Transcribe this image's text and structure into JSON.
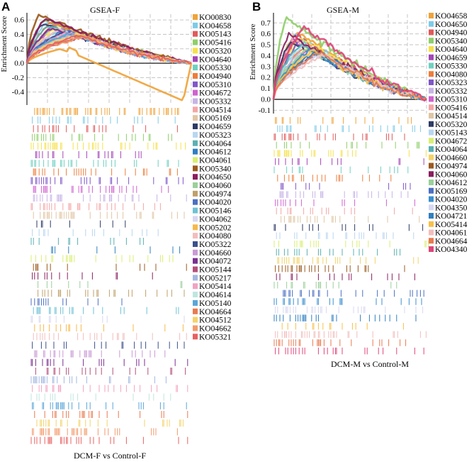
{
  "panels": [
    {
      "letter": "A",
      "footer": "DCM-F vs Control-F",
      "chart_data": {
        "type": "line",
        "title": "GSEA-F",
        "ylabel": "Enrichment Score",
        "xlabel": "",
        "ylim": [
          -0.58,
          0.68
        ],
        "yticks": [
          "0.6",
          "0.4",
          "0.2",
          "0.0",
          "-0.2",
          "-0.4"
        ],
        "grid": true,
        "legend_position": "right",
        "series": [
          {
            "name": "KO00830",
            "color": "#f0a33a",
            "peak": -0.52,
            "peak_at": 0.95
          },
          {
            "name": "KO04658",
            "color": "#7ecbe8",
            "peak": 0.58,
            "peak_at": 0.12
          },
          {
            "name": "KO05143",
            "color": "#e05a5a",
            "peak": 0.55,
            "peak_at": 0.18
          },
          {
            "name": "KO05416",
            "color": "#8fcf6a",
            "peak": 0.6,
            "peak_at": 0.1
          },
          {
            "name": "KO05320",
            "color": "#f6e04a",
            "peak": 0.52,
            "peak_at": 0.2
          },
          {
            "name": "KO04640",
            "color": "#a446b6",
            "peak": 0.5,
            "peak_at": 0.15
          },
          {
            "name": "KO05330",
            "color": "#6fd0c0",
            "peak": 0.48,
            "peak_at": 0.22
          },
          {
            "name": "KO04940",
            "color": "#ee7d3a",
            "peak": 0.56,
            "peak_at": 0.14
          },
          {
            "name": "KO05310",
            "color": "#7f56c8",
            "peak": 0.45,
            "peak_at": 0.25
          },
          {
            "name": "KO04672",
            "color": "#cf63cf",
            "peak": 0.5,
            "peak_at": 0.17
          },
          {
            "name": "KO05332",
            "color": "#c7b3e6",
            "peak": 0.47,
            "peak_at": 0.2
          },
          {
            "name": "KO04514",
            "color": "#f4a6a6",
            "peak": 0.44,
            "peak_at": 0.24
          },
          {
            "name": "KO05169",
            "color": "#e0c6a4",
            "peak": 0.42,
            "peak_at": 0.28
          },
          {
            "name": "KO04659",
            "color": "#2c3a66",
            "peak": 0.55,
            "peak_at": 0.09
          },
          {
            "name": "KO05323",
            "color": "#b8d6f0",
            "peak": 0.46,
            "peak_at": 0.2
          },
          {
            "name": "KO04064",
            "color": "#5ab0b2",
            "peak": 0.52,
            "peak_at": 0.13
          },
          {
            "name": "KO04612",
            "color": "#2f7fc0",
            "peak": 0.43,
            "peak_at": 0.26
          },
          {
            "name": "KO04061",
            "color": "#d8ef72",
            "peak": 0.41,
            "peak_at": 0.3
          },
          {
            "name": "KO05340",
            "color": "#9b5a1e",
            "peak": 0.67,
            "peak_at": 0.07
          },
          {
            "name": "KO04650",
            "color": "#8a1e5e",
            "peak": 0.62,
            "peak_at": 0.11
          },
          {
            "name": "KO04060",
            "color": "#9ad09a",
            "peak": 0.5,
            "peak_at": 0.16
          },
          {
            "name": "KO04974",
            "color": "#bfa06a",
            "peak": 0.39,
            "peak_at": 0.32
          },
          {
            "name": "KO04020",
            "color": "#4b6fc2",
            "peak": 0.45,
            "peak_at": 0.22
          },
          {
            "name": "KO05146",
            "color": "#6fc1d4",
            "peak": 0.42,
            "peak_at": 0.27
          },
          {
            "name": "KO04062",
            "color": "#d7d7f2",
            "peak": 0.38,
            "peak_at": 0.33
          },
          {
            "name": "KO05202",
            "color": "#f7b84a",
            "peak": 0.4,
            "peak_at": 0.3
          },
          {
            "name": "KO04080",
            "color": "#f3bdbd",
            "peak": 0.47,
            "peak_at": 0.19
          },
          {
            "name": "KO05322",
            "color": "#3b4f8a",
            "peak": 0.44,
            "peak_at": 0.23
          },
          {
            "name": "KO04660",
            "color": "#c99ad6",
            "peak": 0.41,
            "peak_at": 0.28
          },
          {
            "name": "KO04072",
            "color": "#7b2f8f",
            "peak": 0.49,
            "peak_at": 0.15
          },
          {
            "name": "KO05144",
            "color": "#b44f7a",
            "peak": 0.37,
            "peak_at": 0.35
          },
          {
            "name": "KO05217",
            "color": "#a3b8e0",
            "peak": 0.4,
            "peak_at": 0.29
          },
          {
            "name": "KO05414",
            "color": "#f2a2c2",
            "peak": 0.43,
            "peak_at": 0.25
          },
          {
            "name": "KO04614",
            "color": "#bfe6df",
            "peak": 0.39,
            "peak_at": 0.31
          },
          {
            "name": "KO05140",
            "color": "#5aa6d8",
            "peak": 0.42,
            "peak_at": 0.26
          },
          {
            "name": "KO04664",
            "color": "#e87a50",
            "peak": 0.38,
            "peak_at": 0.34
          },
          {
            "name": "KO04512",
            "color": "#f3d36a",
            "peak": 0.4,
            "peak_at": 0.3
          },
          {
            "name": "KO04662",
            "color": "#f39a6a",
            "peak": 0.37,
            "peak_at": 0.36
          },
          {
            "name": "KO05321",
            "color": "#e86060",
            "peak": 0.39,
            "peak_at": 0.32
          }
        ]
      }
    },
    {
      "letter": "B",
      "footer": "DCM-M vs Control-M",
      "chart_data": {
        "type": "line",
        "title": "GSEA-M",
        "ylabel": "Enrichment Score",
        "xlabel": "",
        "ylim": [
          -0.13,
          0.78
        ],
        "yticks": [
          "0.7",
          "0.6",
          "0.5",
          "0.4",
          "0.3",
          "0.2",
          "0.1",
          "0.0",
          "-0.1"
        ],
        "grid": true,
        "legend_position": "right",
        "series": [
          {
            "name": "KO04658",
            "color": "#f0a33a",
            "peak": 0.62,
            "peak_at": 0.15
          },
          {
            "name": "KO04650",
            "color": "#7ecbe8",
            "peak": 0.6,
            "peak_at": 0.14
          },
          {
            "name": "KO04940",
            "color": "#e05a5a",
            "peak": 0.58,
            "peak_at": 0.16
          },
          {
            "name": "KO05340",
            "color": "#8fcf6a",
            "peak": 0.75,
            "peak_at": 0.08
          },
          {
            "name": "KO04640",
            "color": "#f6e04a",
            "peak": 0.57,
            "peak_at": 0.18
          },
          {
            "name": "KO04659",
            "color": "#a446b6",
            "peak": 0.55,
            "peak_at": 0.12
          },
          {
            "name": "KO05330",
            "color": "#6fd0c0",
            "peak": 0.52,
            "peak_at": 0.2
          },
          {
            "name": "KO04080",
            "color": "#ee7d3a",
            "peak": 0.5,
            "peak_at": 0.22
          },
          {
            "name": "KO05323",
            "color": "#7f56c8",
            "peak": 0.53,
            "peak_at": 0.17
          },
          {
            "name": "KO05332",
            "color": "#c7b3e6",
            "peak": 0.49,
            "peak_at": 0.23
          },
          {
            "name": "KO05310",
            "color": "#cf63cf",
            "peak": 0.47,
            "peak_at": 0.25
          },
          {
            "name": "KO05416",
            "color": "#f4a6a6",
            "peak": 0.56,
            "peak_at": 0.13
          },
          {
            "name": "KO04514",
            "color": "#e0c6a4",
            "peak": 0.46,
            "peak_at": 0.26
          },
          {
            "name": "KO05320",
            "color": "#2c3a66",
            "peak": 0.54,
            "peak_at": 0.11
          },
          {
            "name": "KO05143",
            "color": "#b8d6f0",
            "peak": 0.5,
            "peak_at": 0.19
          },
          {
            "name": "KO04672",
            "color": "#d8ef72",
            "peak": 0.48,
            "peak_at": 0.24
          },
          {
            "name": "KO04064",
            "color": "#5ab0b2",
            "peak": 0.51,
            "peak_at": 0.18
          },
          {
            "name": "KO04660",
            "color": "#f3d36a",
            "peak": 0.45,
            "peak_at": 0.27
          },
          {
            "name": "KO04974",
            "color": "#9b5a1e",
            "peak": 0.44,
            "peak_at": 0.29
          },
          {
            "name": "KO04060",
            "color": "#8a1e5e",
            "peak": 0.6,
            "peak_at": 0.1
          },
          {
            "name": "KO04612",
            "color": "#9ad09a",
            "peak": 0.47,
            "peak_at": 0.22
          },
          {
            "name": "KO05169",
            "color": "#4b6fc2",
            "peak": 0.43,
            "peak_at": 0.3
          },
          {
            "name": "KO04020",
            "color": "#3c8fcf",
            "peak": 0.46,
            "peak_at": 0.24
          },
          {
            "name": "KO04350",
            "color": "#d7d7f2",
            "peak": 0.42,
            "peak_at": 0.31
          },
          {
            "name": "KO04721",
            "color": "#2f7fc0",
            "peak": 0.44,
            "peak_at": 0.28
          },
          {
            "name": "KO05414",
            "color": "#f7c04a",
            "peak": 0.45,
            "peak_at": 0.26
          },
          {
            "name": "KO04061",
            "color": "#f3bdbd",
            "peak": 0.41,
            "peak_at": 0.33
          },
          {
            "name": "KO04664",
            "color": "#e87a50",
            "peak": 0.43,
            "peak_at": 0.3
          },
          {
            "name": "KO04340",
            "color": "#e0457a",
            "peak": 0.66,
            "peak_at": 0.2
          }
        ]
      }
    }
  ]
}
